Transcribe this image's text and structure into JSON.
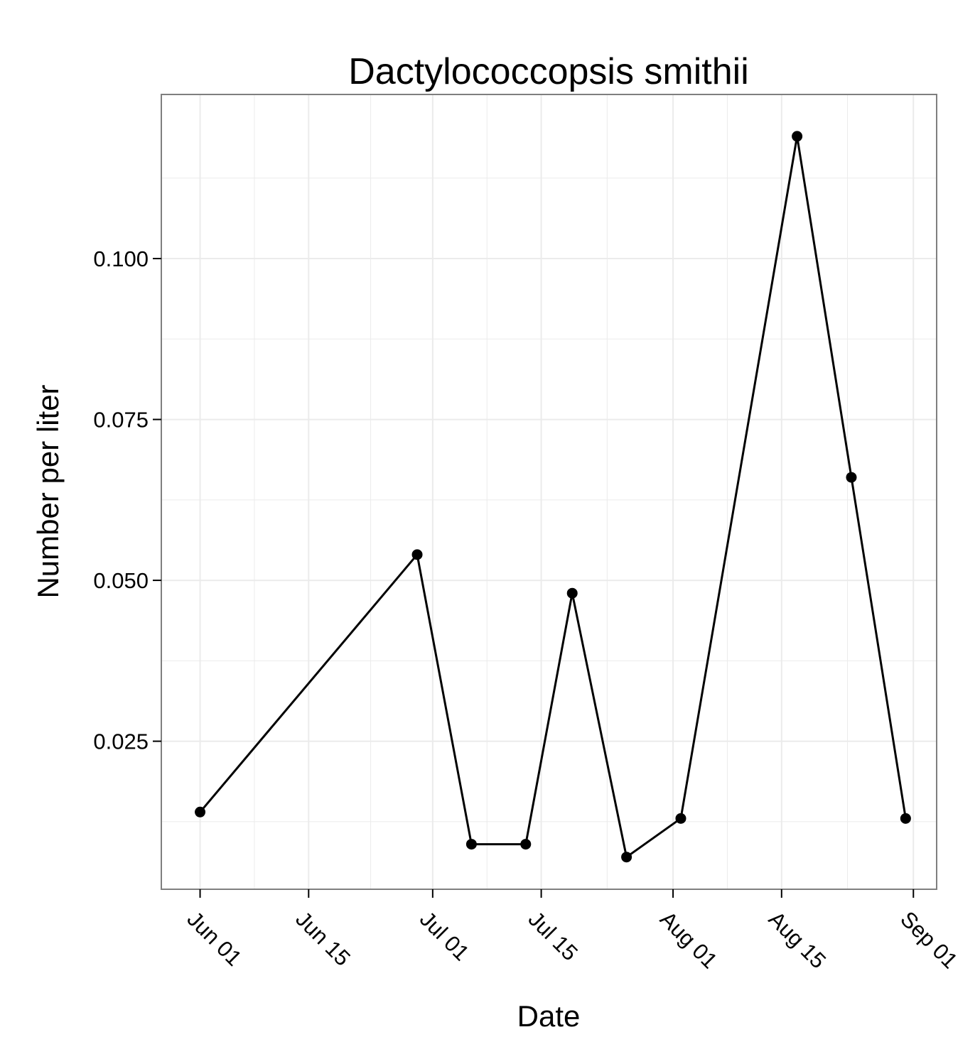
{
  "chart_data": {
    "type": "line",
    "title": "Dactylococcopsis smithii",
    "xlabel": "Date",
    "ylabel": "Number per liter",
    "x_scale": "date",
    "xlim": [
      "2013-05-27",
      "2013-09-04"
    ],
    "ylim": [
      0.002,
      0.1255
    ],
    "x_ticks": [
      {
        "value": "2013-06-01",
        "label": "Jun 01"
      },
      {
        "value": "2013-06-15",
        "label": "Jun 15"
      },
      {
        "value": "2013-07-01",
        "label": "Jul 01"
      },
      {
        "value": "2013-07-15",
        "label": "Jul 15"
      },
      {
        "value": "2013-08-01",
        "label": "Aug 01"
      },
      {
        "value": "2013-08-15",
        "label": "Aug 15"
      },
      {
        "value": "2013-09-01",
        "label": "Sep 01"
      }
    ],
    "y_ticks": [
      {
        "value": 0.025,
        "label": "0.025"
      },
      {
        "value": 0.05,
        "label": "0.050"
      },
      {
        "value": 0.075,
        "label": "0.075"
      },
      {
        "value": 0.1,
        "label": "0.100"
      }
    ],
    "grid": true,
    "colors": {
      "line": "#000000",
      "point": "#000000",
      "panel_border": "#7f7f7f",
      "grid": "#ebebeb"
    },
    "series": [
      {
        "points": [
          {
            "x": "2013-06-01",
            "y": 0.014
          },
          {
            "x": "2013-06-29",
            "y": 0.054
          },
          {
            "x": "2013-07-06",
            "y": 0.009
          },
          {
            "x": "2013-07-13",
            "y": 0.009
          },
          {
            "x": "2013-07-19",
            "y": 0.048
          },
          {
            "x": "2013-07-26",
            "y": 0.007
          },
          {
            "x": "2013-08-02",
            "y": 0.013
          },
          {
            "x": "2013-08-17",
            "y": 0.119
          },
          {
            "x": "2013-08-24",
            "y": 0.066
          },
          {
            "x": "2013-08-31",
            "y": 0.013
          }
        ]
      }
    ]
  }
}
